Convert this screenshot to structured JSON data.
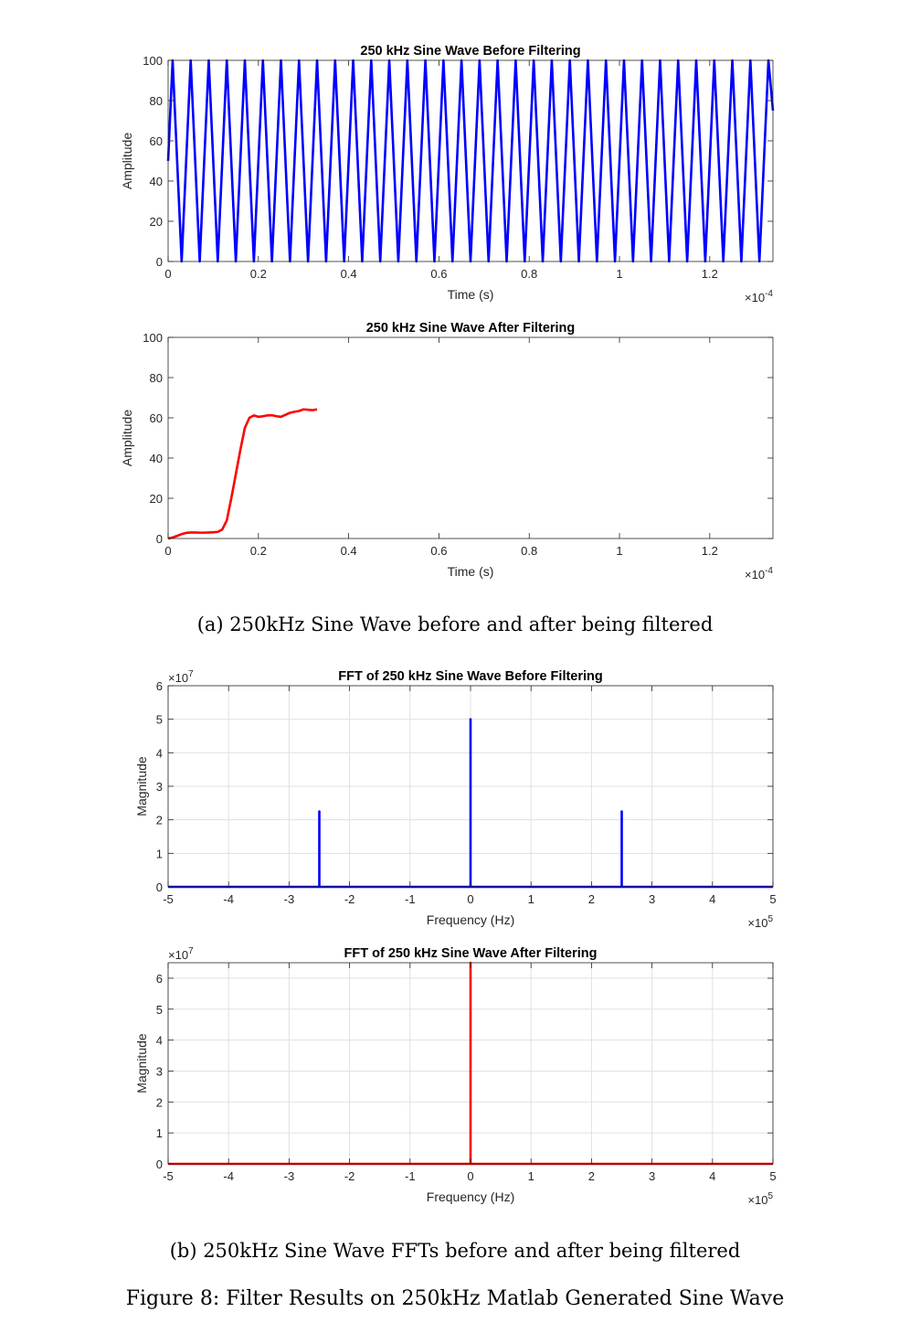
{
  "subcaption_a": "(a) 250kHz Sine Wave before and after being filtered",
  "subcaption_b": "(b) 250kHz Sine Wave FFTs before and after being filtered",
  "figure_caption": "Figure 8: Filter Results on 250kHz Matlab Generated Sine Wave",
  "chart_data": [
    {
      "type": "line",
      "title": "250 kHz Sine Wave Before Filtering",
      "xlabel": "Time (s)",
      "ylabel": "Amplitude",
      "x_multiplier": "×10",
      "x_exponent": "-4",
      "xlim": [
        0,
        1.34
      ],
      "ylim": [
        0,
        100
      ],
      "xticks": [
        0,
        0.2,
        0.4,
        0.6,
        0.8,
        1,
        1.2
      ],
      "xtick_labels": [
        "0",
        "0.2",
        "0.4",
        "0.6",
        "0.8",
        "1",
        "1.2"
      ],
      "yticks": [
        0,
        20,
        40,
        60,
        80,
        100
      ],
      "ytick_labels": [
        "0",
        "20",
        "40",
        "60",
        "80",
        "100"
      ],
      "grid": false,
      "color": "#0000ff",
      "series": [
        {
          "waveform": "triangle",
          "period": 0.04,
          "min": 0,
          "max": 100,
          "x": [
            0,
            0.01,
            0.03,
            0.05,
            0.07,
            0.09,
            0.11,
            0.13,
            0.15,
            0.17,
            0.19,
            0.21,
            0.23,
            0.25,
            0.27,
            0.29,
            0.31,
            0.33,
            0.35,
            0.37,
            0.39,
            0.41,
            0.43,
            0.45,
            0.47,
            0.49,
            0.51,
            0.53,
            0.55,
            0.57,
            0.59,
            0.61,
            0.63,
            0.65,
            0.67,
            0.69,
            0.71,
            0.73,
            0.75,
            0.77,
            0.79,
            0.81,
            0.83,
            0.85,
            0.87,
            0.89,
            0.91,
            0.93,
            0.95,
            0.97,
            0.99,
            1.01,
            1.03,
            1.05,
            1.07,
            1.09,
            1.11,
            1.13,
            1.15,
            1.17,
            1.19,
            1.21,
            1.23,
            1.25,
            1.27,
            1.29,
            1.31,
            1.33,
            1.34
          ],
          "y": [
            50,
            100,
            0,
            100,
            0,
            100,
            0,
            100,
            0,
            100,
            0,
            100,
            0,
            100,
            0,
            100,
            0,
            100,
            0,
            100,
            0,
            100,
            0,
            100,
            0,
            100,
            0,
            100,
            0,
            100,
            0,
            100,
            0,
            100,
            0,
            100,
            0,
            100,
            0,
            100,
            0,
            100,
            0,
            100,
            0,
            100,
            0,
            100,
            0,
            100,
            0,
            100,
            0,
            100,
            0,
            100,
            0,
            100,
            0,
            100,
            0,
            100,
            0,
            100,
            0,
            100,
            0,
            100,
            75
          ]
        }
      ]
    },
    {
      "type": "line",
      "title": "250 kHz Sine Wave After Filtering",
      "xlabel": "Time (s)",
      "ylabel": "Amplitude",
      "x_multiplier": "×10",
      "x_exponent": "-4",
      "xlim": [
        0,
        1.34
      ],
      "ylim": [
        0,
        100
      ],
      "xticks": [
        0,
        0.2,
        0.4,
        0.6,
        0.8,
        1,
        1.2
      ],
      "xtick_labels": [
        "0",
        "0.2",
        "0.4",
        "0.6",
        "0.8",
        "1",
        "1.2"
      ],
      "yticks": [
        0,
        20,
        40,
        60,
        80,
        100
      ],
      "ytick_labels": [
        "0",
        "20",
        "40",
        "60",
        "80",
        "100"
      ],
      "grid": false,
      "color": "#ff0000",
      "series": [
        {
          "settles_to": 64,
          "ripple": 0.7,
          "ripple_period": 0.04,
          "x": [
            0,
            0.01,
            0.02,
            0.03,
            0.04,
            0.05,
            0.06,
            0.07,
            0.08,
            0.09,
            0.1,
            0.11,
            0.12,
            0.13,
            0.14,
            0.15,
            0.16,
            0.17,
            0.18,
            0.19,
            0.2,
            0.21,
            0.22,
            0.23,
            0.24,
            0.25,
            0.26,
            0.27,
            0.28,
            0.29,
            0.3,
            0.31,
            0.32,
            0.33
          ],
          "y": [
            0,
            0.5,
            1.3,
            2.2,
            2.8,
            3,
            3,
            2.9,
            2.9,
            3,
            3.1,
            3.3,
            4.5,
            9,
            20,
            32,
            44,
            55,
            60,
            61.2,
            60.5,
            60.8,
            61.2,
            61.3,
            60.8,
            60.5,
            61.5,
            62.5,
            63,
            63.4,
            64.2,
            64,
            63.8,
            64.2
          ]
        }
      ]
    },
    {
      "type": "line",
      "title": "FFT of 250 kHz Sine Wave Before Filtering",
      "xlabel": "Frequency (Hz)",
      "ylabel": "Magnitude",
      "x_multiplier": "×10",
      "x_exponent": "5",
      "y_multiplier": "×10",
      "y_exponent": "7",
      "xlim": [
        -5,
        5
      ],
      "ylim": [
        0,
        6
      ],
      "xticks": [
        -5,
        -4,
        -3,
        -2,
        -1,
        0,
        1,
        2,
        3,
        4,
        5
      ],
      "xtick_labels": [
        "-5",
        "-4",
        "-3",
        "-2",
        "-1",
        "0",
        "1",
        "2",
        "3",
        "4",
        "5"
      ],
      "yticks": [
        0,
        1,
        2,
        3,
        4,
        5,
        6
      ],
      "ytick_labels": [
        "0",
        "1",
        "2",
        "3",
        "4",
        "5",
        "6"
      ],
      "grid": true,
      "color": "#0000ff",
      "series": [
        {
          "x": [
            -5,
            -2.5,
            -2.5,
            -2.5,
            0,
            0,
            0,
            2.5,
            2.5,
            2.5,
            5
          ],
          "y": [
            0,
            0,
            2.25,
            0,
            0,
            5,
            0,
            0,
            2.25,
            0,
            0
          ]
        }
      ]
    },
    {
      "type": "line",
      "title": "FFT of 250 kHz Sine Wave After Filtering",
      "xlabel": "Frequency (Hz)",
      "ylabel": "Magnitude",
      "x_multiplier": "×10",
      "x_exponent": "5",
      "y_multiplier": "×10",
      "y_exponent": "7",
      "xlim": [
        -5,
        5
      ],
      "ylim": [
        0,
        6.5
      ],
      "xticks": [
        -5,
        -4,
        -3,
        -2,
        -1,
        0,
        1,
        2,
        3,
        4,
        5
      ],
      "xtick_labels": [
        "-5",
        "-4",
        "-3",
        "-2",
        "-1",
        "0",
        "1",
        "2",
        "3",
        "4",
        "5"
      ],
      "yticks": [
        0,
        1,
        2,
        3,
        4,
        5,
        6
      ],
      "ytick_labels": [
        "0",
        "1",
        "2",
        "3",
        "4",
        "5",
        "6"
      ],
      "grid": true,
      "color": "#ff0000",
      "series": [
        {
          "x": [
            -5,
            0,
            0,
            0,
            5
          ],
          "y": [
            0,
            0,
            6.5,
            0,
            0
          ]
        }
      ]
    }
  ]
}
